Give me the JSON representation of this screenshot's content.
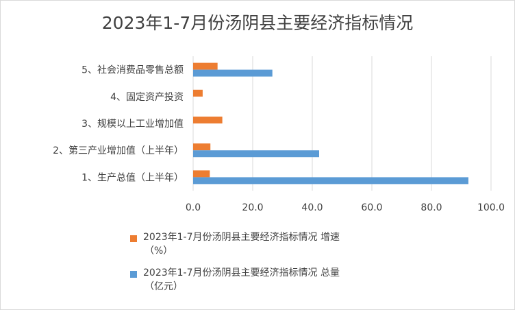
{
  "chart_data": {
    "type": "bar",
    "orientation": "horizontal",
    "title": "2023年1-7月份汤阴县主要经济指标情况",
    "categories": [
      "5、社会消费品零售总额",
      "4、固定资产投资",
      "3、规模以上工业增加值",
      "2、第三产业增加值（上半年）",
      "1、生产总值（上半年）"
    ],
    "series": [
      {
        "name": "2023年1-7月份汤阴县主要经济指标情况 增速（%）",
        "color": "#ED7D31",
        "values": [
          8.2,
          3.2,
          9.8,
          5.8,
          5.6
        ]
      },
      {
        "name": "2023年1-7月份汤阴县主要经济指标情况 总量（亿元）",
        "color": "#5B9BD5",
        "values": [
          26.6,
          null,
          null,
          42.3,
          92.4
        ]
      }
    ],
    "xlim": [
      0,
      100
    ],
    "xticks": [
      "0.0",
      "20.0",
      "40.0",
      "60.0",
      "80.0",
      "100.0"
    ],
    "grid": true,
    "legend_position": "bottom"
  },
  "legend": {
    "growth_label_line1": "2023年1-7月份汤阴县主要经济指标情况 增速",
    "growth_label_line2": "（%）",
    "total_label_line1": "2023年1-7月份汤阴县主要经济指标情况 总量",
    "total_label_line2": "（亿元）"
  }
}
